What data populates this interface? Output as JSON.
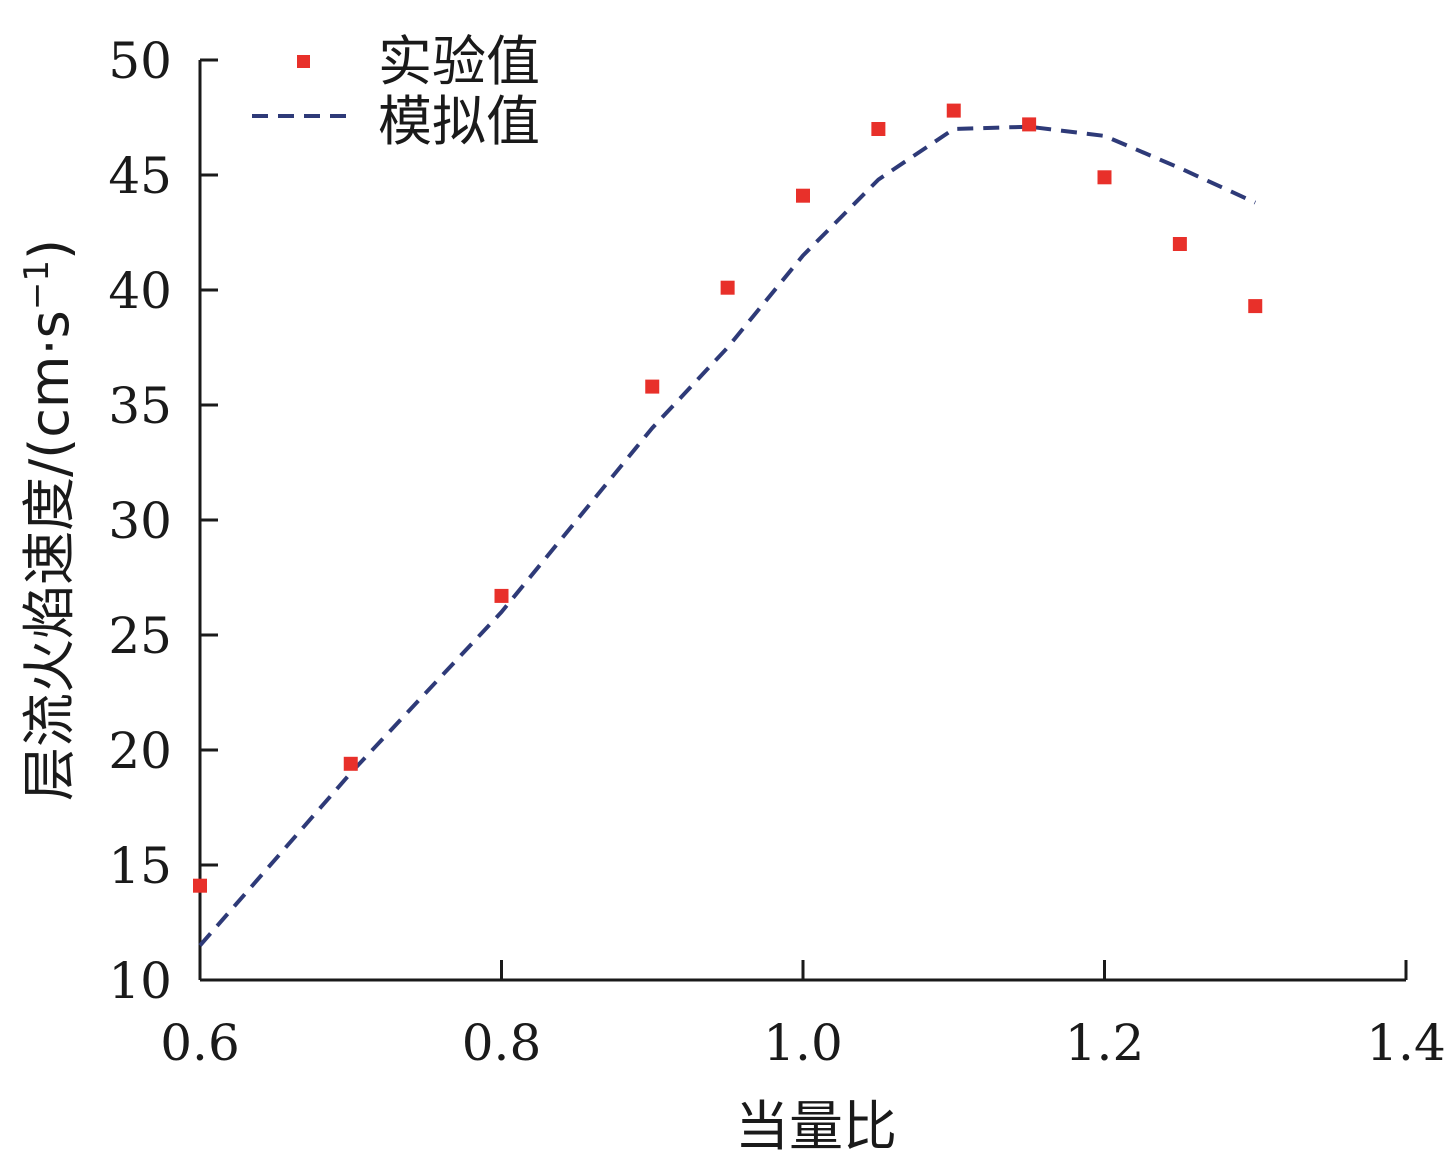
{
  "chart_data": {
    "type": "scatter",
    "xlabel": "当量比",
    "ylabel": "层流火焰速度/(cm·s",
    "ylabel_sup": "−1",
    "ylabel_close": ")",
    "xlim": [
      0.6,
      1.4
    ],
    "ylim": [
      10,
      50
    ],
    "xticks": [
      "0.6",
      "0.8",
      "1.0",
      "1.2",
      "1.4"
    ],
    "yticks": [
      "10",
      "15",
      "20",
      "25",
      "30",
      "35",
      "40",
      "45",
      "50"
    ],
    "legend_position": "top-left",
    "grid": false,
    "series": [
      {
        "name": "实验值",
        "kind": "scatter",
        "color": "#e8302a",
        "marker": "square",
        "x": [
          0.6,
          0.7,
          0.8,
          0.9,
          0.95,
          1.0,
          1.05,
          1.1,
          1.15,
          1.2,
          1.25,
          1.3
        ],
        "y": [
          14.1,
          19.4,
          26.7,
          35.8,
          40.1,
          44.1,
          47.0,
          47.8,
          47.2,
          44.9,
          42.0,
          39.3
        ]
      },
      {
        "name": "模拟值",
        "kind": "line",
        "dash": true,
        "color": "#2e3a78",
        "x": [
          0.6,
          0.7,
          0.8,
          0.9,
          0.95,
          1.0,
          1.05,
          1.1,
          1.15,
          1.2,
          1.25,
          1.3
        ],
        "y": [
          11.5,
          19.0,
          26.0,
          34.0,
          37.5,
          41.5,
          44.8,
          47.0,
          47.1,
          46.7,
          45.3,
          43.8
        ]
      }
    ]
  }
}
